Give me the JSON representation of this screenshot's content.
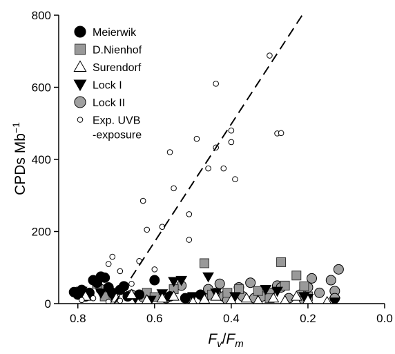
{
  "chart_data": {
    "type": "scatter",
    "title": "",
    "xlabel": {
      "main": "F",
      "sub1": "v",
      "sep": "/",
      "main2": "F",
      "sub2": "m"
    },
    "ylabel": {
      "main": "CPDs Mb",
      "sup": "−1"
    },
    "xlim": [
      0.0,
      0.85
    ],
    "ylim": [
      0,
      800
    ],
    "x_reversed": true,
    "x_ticks": [
      0.8,
      0.6,
      0.4,
      0.2,
      0.0
    ],
    "x_tick_labels": [
      "0.8",
      "0.6",
      "0.4",
      "0.2",
      "0.0"
    ],
    "y_ticks": [
      0,
      200,
      400,
      600,
      800
    ],
    "y_tick_labels": [
      "0",
      "200",
      "400",
      "600",
      "800"
    ],
    "grid": false,
    "legend_position": "top-left",
    "series": [
      {
        "name": "Meierwik",
        "marker": "circle-filled",
        "color": "#000000",
        "points": [
          [
            0.81,
            32
          ],
          [
            0.8,
            25
          ],
          [
            0.79,
            38
          ],
          [
            0.78,
            20
          ],
          [
            0.77,
            30
          ],
          [
            0.76,
            65
          ],
          [
            0.75,
            58
          ],
          [
            0.74,
            75
          ],
          [
            0.73,
            72
          ],
          [
            0.72,
            45
          ],
          [
            0.71,
            30
          ],
          [
            0.69,
            38
          ],
          [
            0.68,
            48
          ],
          [
            0.67,
            20
          ],
          [
            0.64,
            25
          ],
          [
            0.6,
            65
          ],
          [
            0.56,
            20
          ],
          [
            0.52,
            15
          ],
          [
            0.48,
            25
          ]
        ]
      },
      {
        "name": "D.Nienhof",
        "marker": "square-filled",
        "color": "#999999",
        "points": [
          [
            0.75,
            55
          ],
          [
            0.73,
            20
          ],
          [
            0.62,
            30
          ],
          [
            0.6,
            18
          ],
          [
            0.55,
            40
          ],
          [
            0.47,
            112
          ],
          [
            0.45,
            25
          ],
          [
            0.41,
            30
          ],
          [
            0.38,
            40
          ],
          [
            0.33,
            35
          ],
          [
            0.3,
            15
          ],
          [
            0.27,
            115
          ],
          [
            0.26,
            50
          ],
          [
            0.23,
            78
          ],
          [
            0.21,
            48
          ],
          [
            0.2,
            20
          ]
        ]
      },
      {
        "name": "Surendorf",
        "marker": "triangle-up-open",
        "color": "#ffffff",
        "points": [
          [
            0.78,
            20
          ],
          [
            0.7,
            15
          ],
          [
            0.66,
            25
          ],
          [
            0.62,
            10
          ],
          [
            0.58,
            15
          ],
          [
            0.55,
            20
          ],
          [
            0.5,
            5
          ],
          [
            0.47,
            12
          ],
          [
            0.44,
            20
          ],
          [
            0.4,
            10
          ],
          [
            0.36,
            15
          ],
          [
            0.33,
            8
          ],
          [
            0.29,
            15
          ],
          [
            0.26,
            8
          ],
          [
            0.23,
            20
          ],
          [
            0.2,
            10
          ],
          [
            0.15,
            5
          ]
        ]
      },
      {
        "name": "Lock I",
        "marker": "triangle-down-filled",
        "color": "#000000",
        "points": [
          [
            0.79,
            35
          ],
          [
            0.74,
            30
          ],
          [
            0.71,
            20
          ],
          [
            0.65,
            15
          ],
          [
            0.61,
            10
          ],
          [
            0.58,
            28
          ],
          [
            0.55,
            62
          ],
          [
            0.53,
            65
          ],
          [
            0.5,
            20
          ],
          [
            0.46,
            75
          ],
          [
            0.44,
            30
          ],
          [
            0.39,
            20
          ],
          [
            0.31,
            40
          ],
          [
            0.28,
            35
          ],
          [
            0.21,
            20
          ],
          [
            0.2,
            15
          ],
          [
            0.13,
            5
          ]
        ]
      },
      {
        "name": "Lock II",
        "marker": "circle-filled",
        "color": "#a0a0a0",
        "points": [
          [
            0.74,
            40
          ],
          [
            0.72,
            35
          ],
          [
            0.66,
            25
          ],
          [
            0.63,
            18
          ],
          [
            0.57,
            15
          ],
          [
            0.53,
            50
          ],
          [
            0.51,
            15
          ],
          [
            0.47,
            15
          ],
          [
            0.46,
            40
          ],
          [
            0.44,
            30
          ],
          [
            0.43,
            55
          ],
          [
            0.42,
            20
          ],
          [
            0.41,
            10
          ],
          [
            0.38,
            45
          ],
          [
            0.37,
            20
          ],
          [
            0.35,
            58
          ],
          [
            0.34,
            15
          ],
          [
            0.32,
            20
          ],
          [
            0.3,
            30
          ],
          [
            0.28,
            50
          ],
          [
            0.27,
            45
          ],
          [
            0.25,
            15
          ],
          [
            0.22,
            25
          ],
          [
            0.21,
            10
          ],
          [
            0.2,
            45
          ],
          [
            0.19,
            70
          ],
          [
            0.17,
            30
          ],
          [
            0.14,
            65
          ],
          [
            0.13,
            35
          ],
          [
            0.13,
            15
          ],
          [
            0.12,
            95
          ]
        ]
      },
      {
        "name": "Exp. UVB -exposure",
        "name_lines": [
          "Exp. UVB",
          "-exposure"
        ],
        "marker": "circle-open-small",
        "color": "#ffffff",
        "points": [
          [
            0.72,
            110
          ],
          [
            0.71,
            130
          ],
          [
            0.69,
            90
          ],
          [
            0.66,
            55
          ],
          [
            0.64,
            118
          ],
          [
            0.63,
            285
          ],
          [
            0.62,
            205
          ],
          [
            0.6,
            95
          ],
          [
            0.58,
            213
          ],
          [
            0.56,
            420
          ],
          [
            0.55,
            320
          ],
          [
            0.51,
            248
          ],
          [
            0.51,
            177
          ],
          [
            0.49,
            457
          ],
          [
            0.46,
            375
          ],
          [
            0.44,
            610
          ],
          [
            0.44,
            433
          ],
          [
            0.42,
            375
          ],
          [
            0.4,
            480
          ],
          [
            0.4,
            448
          ],
          [
            0.39,
            345
          ],
          [
            0.3,
            688
          ],
          [
            0.28,
            472
          ],
          [
            0.27,
            473
          ],
          [
            0.79,
            10
          ],
          [
            0.76,
            15
          ],
          [
            0.72,
            5
          ],
          [
            0.69,
            8
          ]
        ]
      }
    ],
    "regression_line": {
      "style": "dashed",
      "from": [
        0.705,
        0
      ],
      "to": [
        0.215,
        800
      ]
    }
  }
}
